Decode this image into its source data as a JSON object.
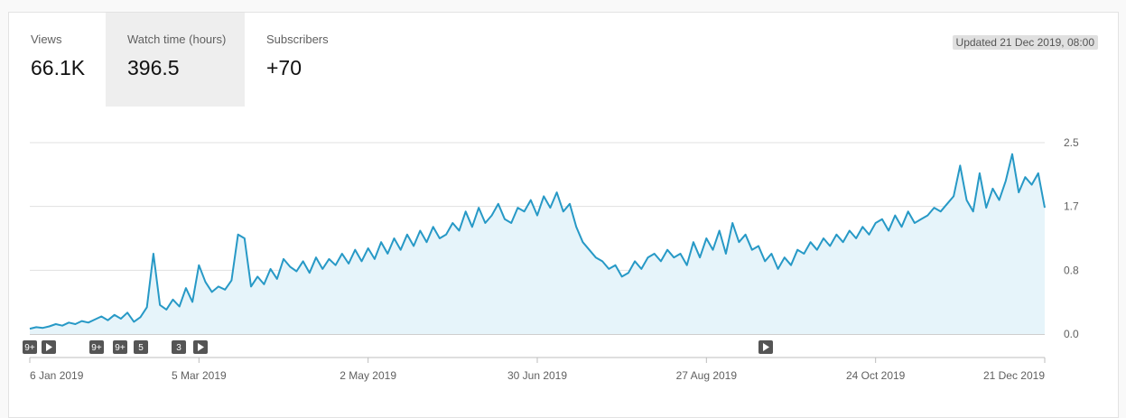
{
  "metrics": [
    {
      "label": "Views",
      "value": "66.1K",
      "selected": false
    },
    {
      "label": "Watch time (hours)",
      "value": "396.5",
      "selected": true
    },
    {
      "label": "Subscribers",
      "value": "+70",
      "selected": false
    }
  ],
  "updated": "Updated 21 Dec 2019, 08:00",
  "colors": {
    "line": "#2799c6",
    "fill": "#e6f4fa",
    "grid": "#e0e0e0",
    "marker": "#555555"
  },
  "markers": [
    "9+",
    "play",
    "9+",
    "9+",
    "5",
    "3",
    "play",
    "play"
  ],
  "chart_data": {
    "type": "area",
    "title": "",
    "xlabel": "",
    "ylabel": "",
    "x_ticks": [
      "6 Jan 2019",
      "5 Mar 2019",
      "2 May 2019",
      "30 Jun 2019",
      "27 Aug 2019",
      "24 Oct 2019",
      "21 Dec 2019"
    ],
    "y_ticks": [
      "0.0",
      "0.8",
      "1.7",
      "2.5"
    ],
    "ylim": [
      0,
      2.5
    ],
    "x_start": "6 Jan 2019",
    "x_end": "21 Dec 2019",
    "grid": true,
    "series": [
      {
        "values": [
          0.07,
          0.09,
          0.08,
          0.1,
          0.13,
          0.11,
          0.15,
          0.13,
          0.17,
          0.15,
          0.19,
          0.23,
          0.18,
          0.25,
          0.2,
          0.28,
          0.16,
          0.22,
          0.35,
          1.05,
          0.38,
          0.32,
          0.45,
          0.36,
          0.6,
          0.42,
          0.9,
          0.68,
          0.55,
          0.62,
          0.58,
          0.7,
          1.3,
          1.25,
          0.62,
          0.75,
          0.65,
          0.85,
          0.72,
          0.98,
          0.88,
          0.82,
          0.95,
          0.8,
          1.0,
          0.85,
          0.98,
          0.9,
          1.05,
          0.92,
          1.1,
          0.95,
          1.12,
          0.98,
          1.2,
          1.05,
          1.25,
          1.1,
          1.3,
          1.15,
          1.35,
          1.2,
          1.4,
          1.25,
          1.3,
          1.45,
          1.35,
          1.6,
          1.4,
          1.65,
          1.45,
          1.55,
          1.7,
          1.5,
          1.45,
          1.65,
          1.6,
          1.75,
          1.55,
          1.8,
          1.65,
          1.85,
          1.6,
          1.7,
          1.4,
          1.2,
          1.1,
          1.0,
          0.95,
          0.85,
          0.9,
          0.75,
          0.8,
          0.95,
          0.85,
          1.0,
          1.05,
          0.95,
          1.1,
          1.0,
          1.05,
          0.9,
          1.2,
          1.0,
          1.25,
          1.1,
          1.35,
          1.05,
          1.45,
          1.2,
          1.3,
          1.1,
          1.15,
          0.95,
          1.05,
          0.85,
          1.0,
          0.9,
          1.1,
          1.05,
          1.2,
          1.1,
          1.25,
          1.15,
          1.3,
          1.2,
          1.35,
          1.25,
          1.4,
          1.3,
          1.45,
          1.5,
          1.35,
          1.55,
          1.4,
          1.6,
          1.45,
          1.5,
          1.55,
          1.65,
          1.6,
          1.7,
          1.8,
          2.2,
          1.75,
          1.6,
          2.1,
          1.65,
          1.9,
          1.75,
          2.0,
          2.35,
          1.85,
          2.05,
          1.95,
          2.1,
          1.65
        ]
      }
    ]
  }
}
